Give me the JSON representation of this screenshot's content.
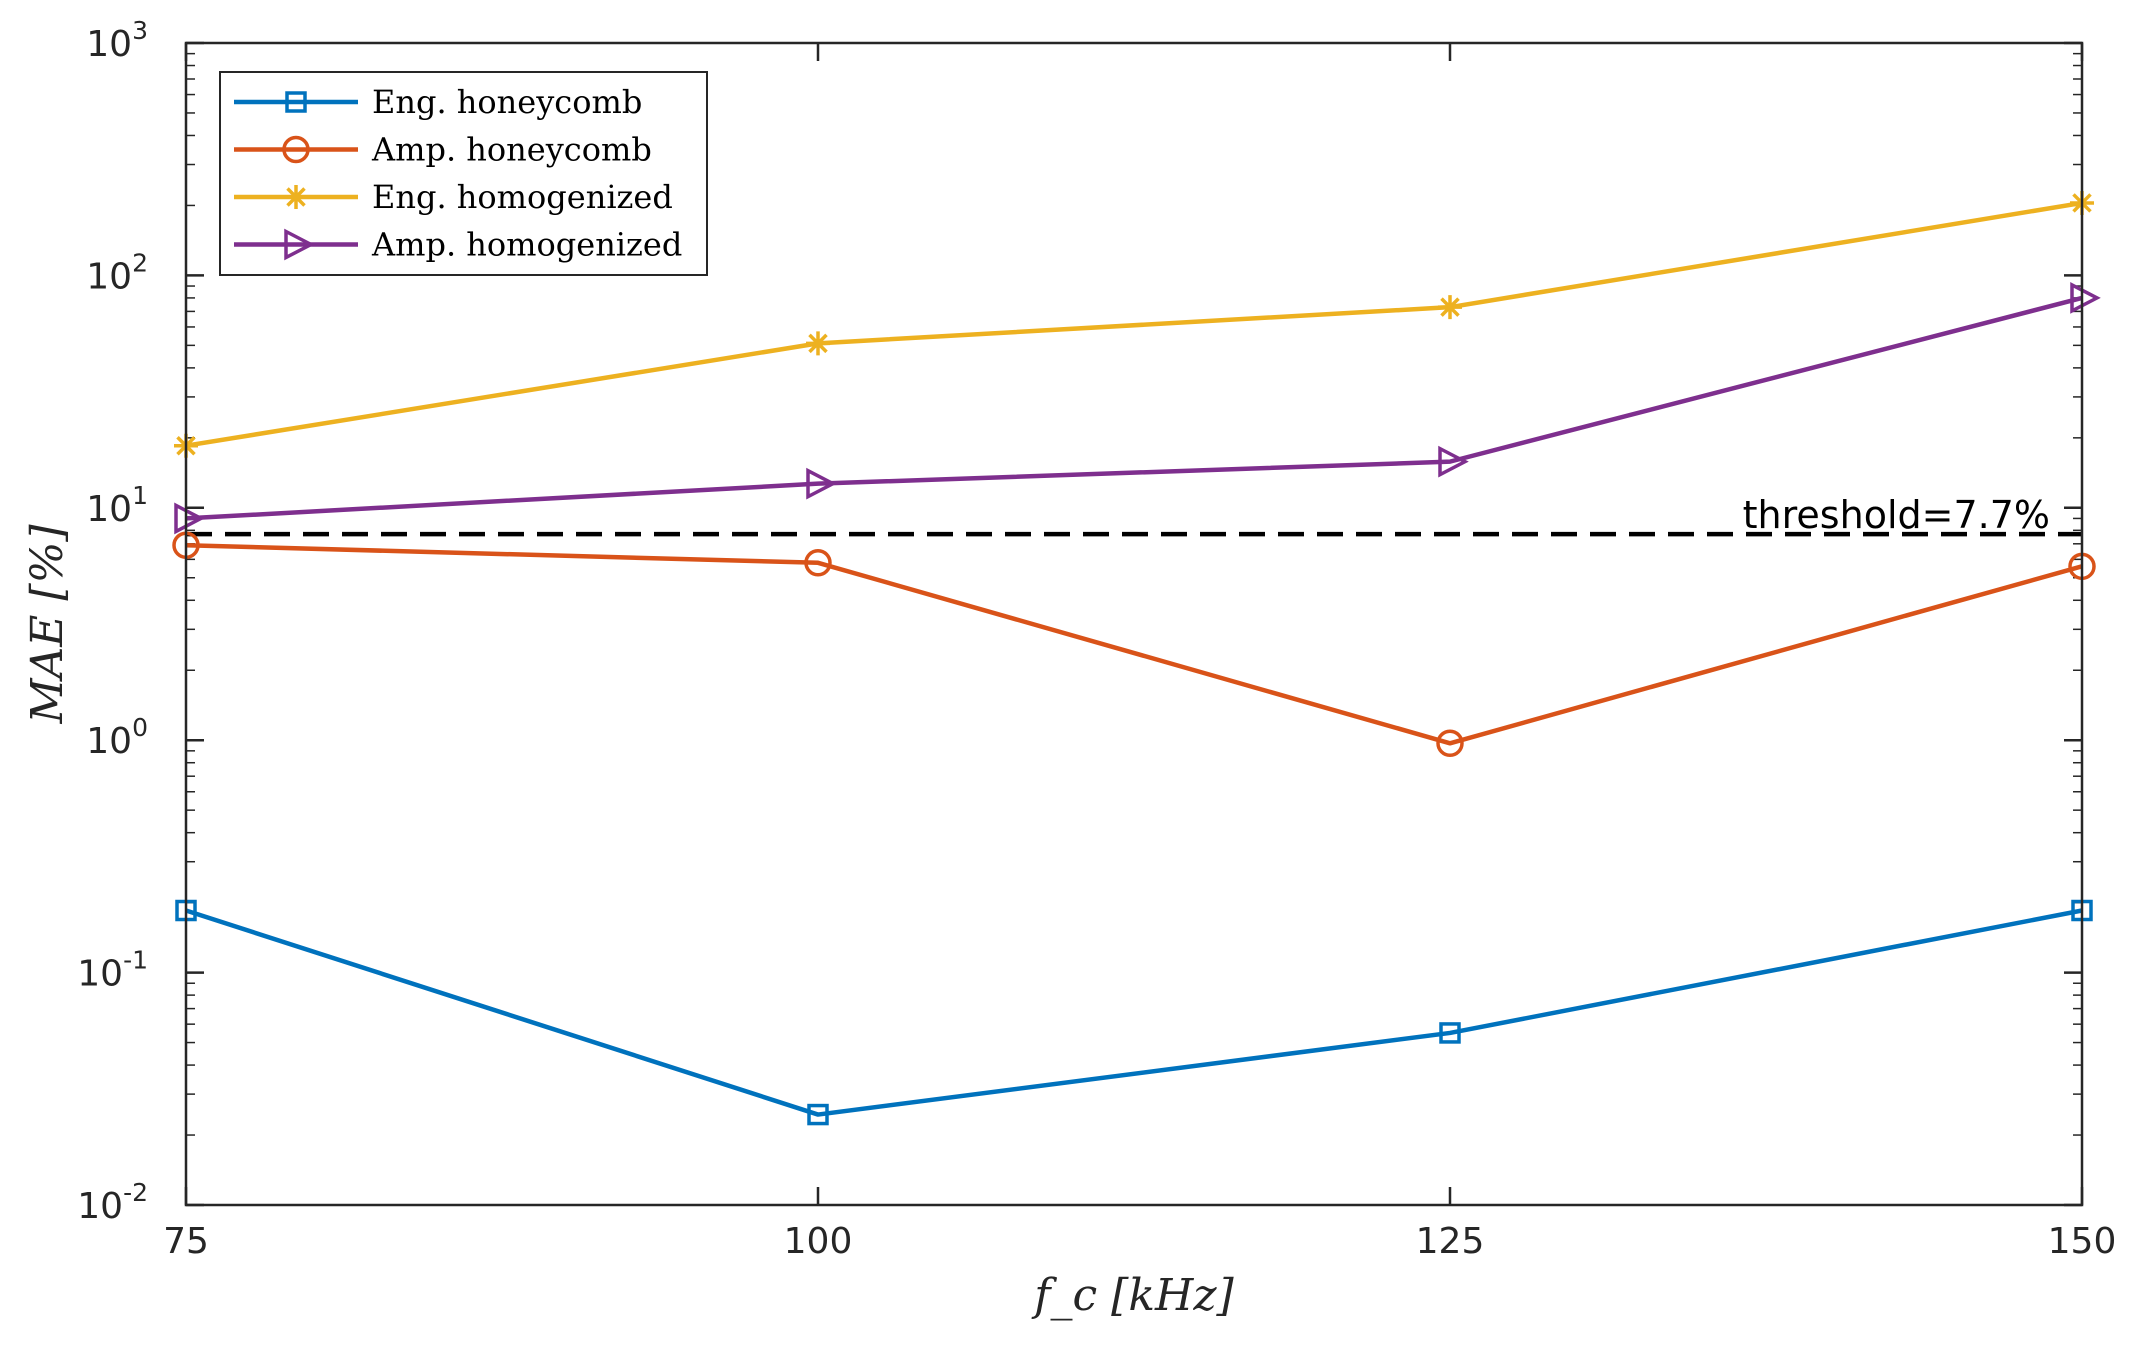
{
  "chart_data": {
    "type": "line",
    "title": "",
    "xlabel": "f_c [kHz]",
    "ylabel": "MAE [%]",
    "yscale": "log",
    "x": [
      75,
      100,
      125,
      150
    ],
    "xlim": [
      75,
      150
    ],
    "ylim": [
      0.01,
      1000
    ],
    "xticks": [
      "75",
      "100",
      "125",
      "150"
    ],
    "yticks": [
      {
        "base": "10",
        "exp": "-2"
      },
      {
        "base": "10",
        "exp": "-1"
      },
      {
        "base": "10",
        "exp": "0"
      },
      {
        "base": "10",
        "exp": "1"
      },
      {
        "base": "10",
        "exp": "2"
      },
      {
        "base": "10",
        "exp": "3"
      }
    ],
    "grid": false,
    "legend_position": "top-left",
    "series": [
      {
        "name": "Eng. honeycomb",
        "marker": "square",
        "color": "#0072BD",
        "values": [
          0.185,
          0.0245,
          0.055,
          0.185
        ]
      },
      {
        "name": "Amp. honeycomb",
        "marker": "circle",
        "color": "#D95319",
        "values": [
          6.9,
          5.8,
          0.97,
          5.6
        ]
      },
      {
        "name": "Eng. homogenized",
        "marker": "asterisk",
        "color": "#EDB120",
        "values": [
          18.5,
          51,
          73,
          205
        ]
      },
      {
        "name": "Amp. homogenized",
        "marker": "triangle-right",
        "color": "#7E2F8E",
        "values": [
          9.0,
          12.7,
          15.8,
          80
        ]
      }
    ],
    "threshold": {
      "value": 7.7,
      "label": "threshold=7.7%",
      "color": "#000000",
      "style": "dashed"
    }
  }
}
